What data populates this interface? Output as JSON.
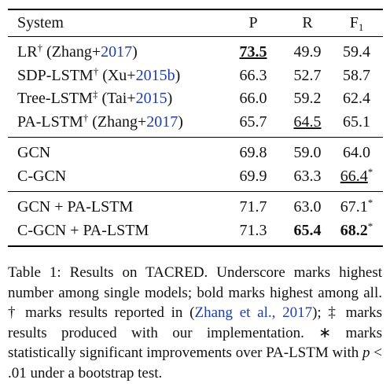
{
  "table": {
    "header": [
      [
        {
          "text": "System"
        }
      ],
      [
        {
          "text": "P"
        }
      ],
      [
        {
          "text": "R"
        }
      ],
      [
        {
          "text": "F"
        },
        {
          "text": "1",
          "sub": true
        }
      ]
    ],
    "groups": [
      {
        "rows": [
          [
            [
              {
                "text": "LR"
              },
              {
                "text": "†",
                "sup": true
              },
              {
                "text": " (Zhang+"
              },
              {
                "text": "2017",
                "link": true
              },
              {
                "text": ")"
              }
            ],
            [
              {
                "text": "73.5",
                "bold": true,
                "underline": true
              }
            ],
            [
              {
                "text": "49.9"
              }
            ],
            [
              {
                "text": "59.4"
              }
            ]
          ],
          [
            [
              {
                "text": "SDP-LSTM"
              },
              {
                "text": "†",
                "sup": true
              },
              {
                "text": " (Xu+"
              },
              {
                "text": "2015b",
                "link": true
              },
              {
                "text": ")"
              }
            ],
            [
              {
                "text": "66.3"
              }
            ],
            [
              {
                "text": "52.7"
              }
            ],
            [
              {
                "text": "58.7"
              }
            ]
          ],
          [
            [
              {
                "text": "Tree-LSTM"
              },
              {
                "text": "‡",
                "sup": true
              },
              {
                "text": " (Tai+"
              },
              {
                "text": "2015",
                "link": true
              },
              {
                "text": ")"
              }
            ],
            [
              {
                "text": "66.0"
              }
            ],
            [
              {
                "text": "59.2"
              }
            ],
            [
              {
                "text": "62.4"
              }
            ]
          ],
          [
            [
              {
                "text": "PA-LSTM"
              },
              {
                "text": "†",
                "sup": true
              },
              {
                "text": " (Zhang+"
              },
              {
                "text": "2017",
                "link": true
              },
              {
                "text": ")"
              }
            ],
            [
              {
                "text": "65.7"
              }
            ],
            [
              {
                "text": "64.5",
                "underline": true
              }
            ],
            [
              {
                "text": "65.1"
              }
            ]
          ]
        ]
      },
      {
        "rows": [
          [
            [
              {
                "text": "GCN"
              }
            ],
            [
              {
                "text": "69.8"
              }
            ],
            [
              {
                "text": "59.0"
              }
            ],
            [
              {
                "text": "64.0"
              }
            ]
          ],
          [
            [
              {
                "text": "C-GCN"
              }
            ],
            [
              {
                "text": "69.9"
              }
            ],
            [
              {
                "text": "63.3"
              }
            ],
            [
              {
                "text": "66.4",
                "underline": true
              },
              {
                "text": "*",
                "sup": true
              }
            ]
          ]
        ]
      },
      {
        "rows": [
          [
            [
              {
                "text": "GCN + PA-LSTM"
              }
            ],
            [
              {
                "text": "71.7"
              }
            ],
            [
              {
                "text": "63.0"
              }
            ],
            [
              {
                "text": "67.1"
              },
              {
                "text": "*",
                "sup": true
              }
            ]
          ],
          [
            [
              {
                "text": "C-GCN + PA-LSTM"
              }
            ],
            [
              {
                "text": "71.3"
              }
            ],
            [
              {
                "text": "65.4",
                "bold": true
              }
            ],
            [
              {
                "text": "68.2",
                "bold": true
              },
              {
                "text": "*",
                "sup": true
              }
            ]
          ]
        ]
      }
    ]
  },
  "caption": [
    {
      "text": "Table 1: Results on TACRED. Underscore marks highest number among single models; bold marks highest among all. † marks results reported in ("
    },
    {
      "text": "Zhang et al., 2017",
      "link": true
    },
    {
      "text": "); ‡ marks results produced with our implementation. ∗ marks statistically significant improvements over PA-LSTM with "
    },
    {
      "text": "p",
      "italic": true
    },
    {
      "text": " < .01 under a bootstrap test."
    }
  ]
}
